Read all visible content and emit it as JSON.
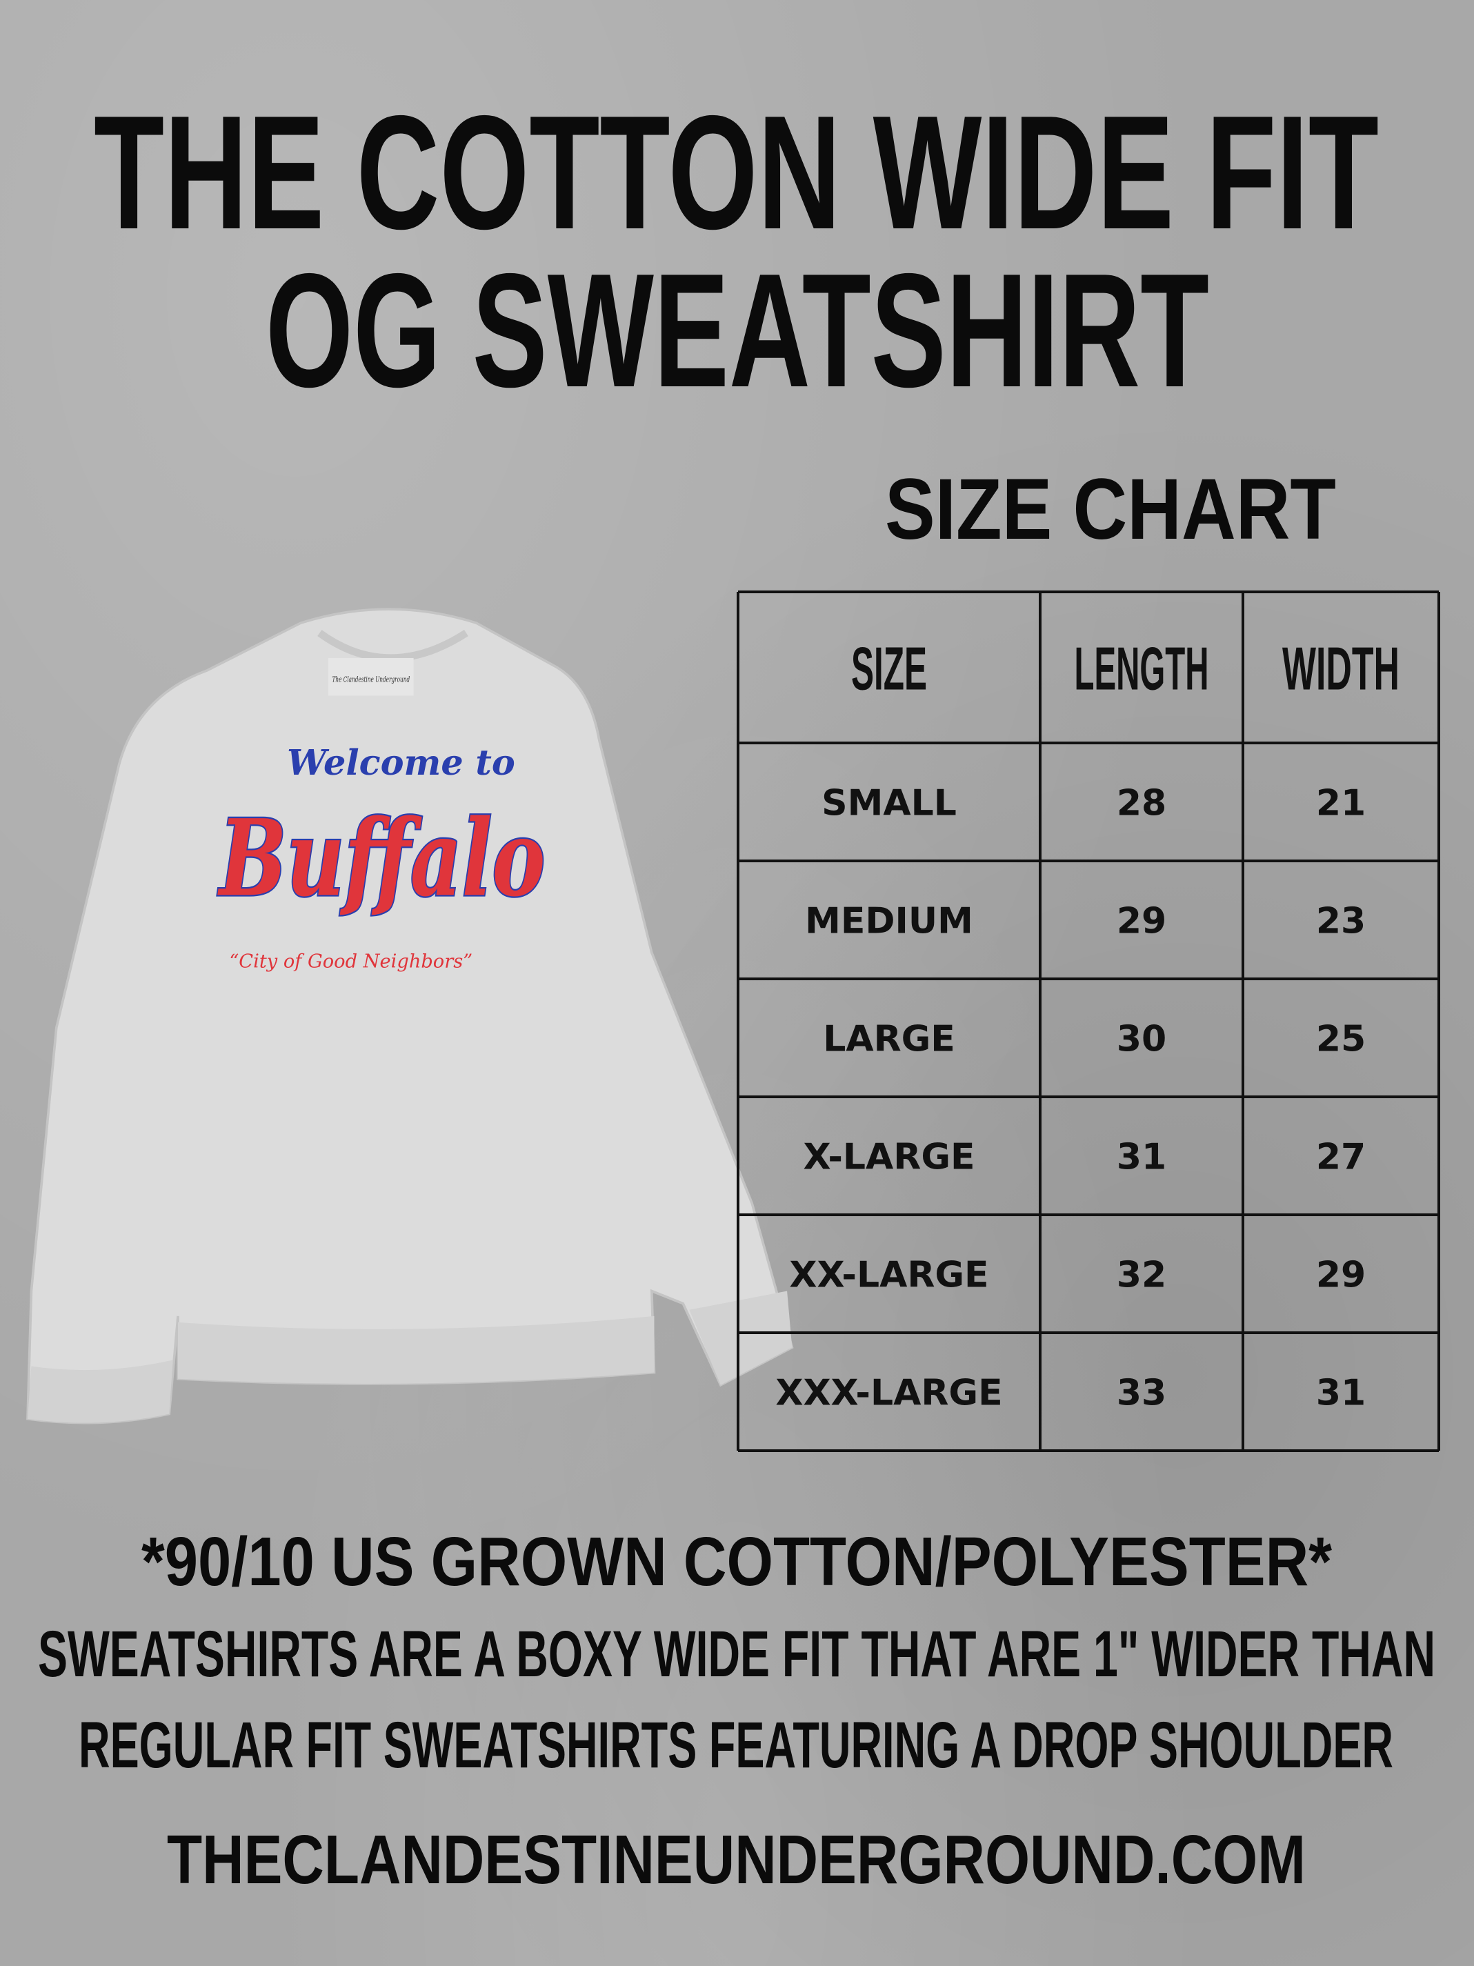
{
  "title": {
    "line1": "THE COTTON WIDE FIT",
    "line2": "OG SWEATSHIRT"
  },
  "size_chart": {
    "heading": "SIZE CHART",
    "columns": [
      "SIZE",
      "LENGTH",
      "WIDTH"
    ],
    "rows": [
      [
        "SMALL",
        "28",
        "21"
      ],
      [
        "MEDIUM",
        "29",
        "23"
      ],
      [
        "LARGE",
        "30",
        "25"
      ],
      [
        "X-LARGE",
        "31",
        "27"
      ],
      [
        "XX-LARGE",
        "32",
        "29"
      ],
      [
        "XXX-LARGE",
        "33",
        "31"
      ]
    ]
  },
  "product_image": {
    "graphic_line1": "Welcome to",
    "graphic_line2": "Buffalo",
    "graphic_line3": "“City of Good Neighbors”",
    "tag_text": "The Clandestine Underground",
    "colors": {
      "fabric": "#dcdcdc",
      "red": "#e0353b",
      "blue": "#2a3fae"
    }
  },
  "material": "*90/10 US GROWN COTTON/POLYESTER*",
  "description": {
    "line1": "SWEATSHIRTS ARE A BOXY WIDE FIT THAT ARE 1\" WIDER THAN",
    "line2": "REGULAR FIT SWEATSHIRTS FEATURING A DROP SHOULDER"
  },
  "website": "THECLANDESTINEUNDERGROUND.COM"
}
